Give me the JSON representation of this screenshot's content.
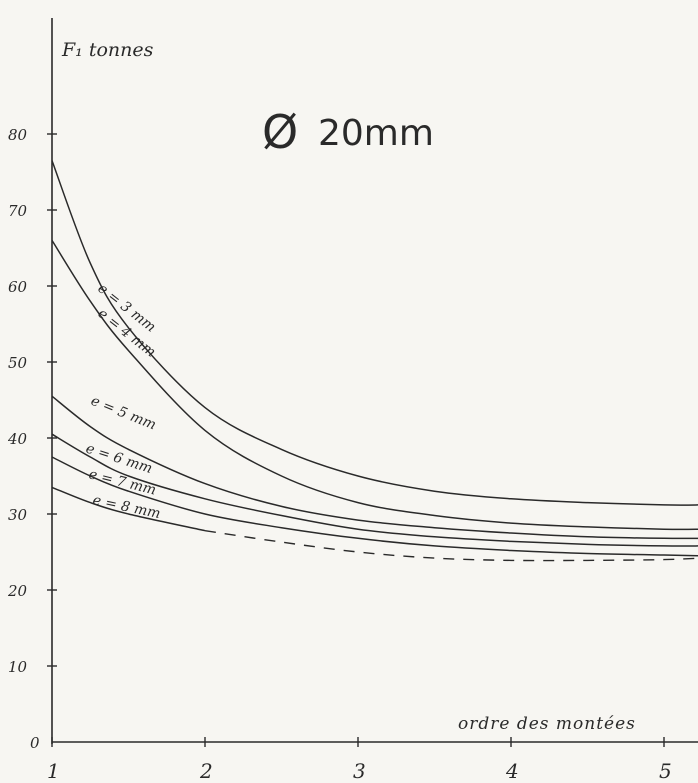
{
  "chart_data": {
    "type": "line",
    "title": "Ø 20mm",
    "title_symbol": "Ø",
    "title_text": "20mm",
    "ylabel": "F₁ tonnes",
    "xlabel": "ordre des montées",
    "x_ticks": [
      "1",
      "2",
      "3",
      "4",
      "5"
    ],
    "y_ticks": [
      "0",
      "10",
      "20",
      "30",
      "40",
      "50",
      "60",
      "70",
      "80"
    ],
    "xlim": [
      1,
      5.25
    ],
    "ylim": [
      0,
      92
    ],
    "grid": false,
    "legend": "inline labels on curves",
    "colors": {
      "ink": "#2a2a2a",
      "paper": "#f7f6f2"
    },
    "series": [
      {
        "name": "e = 3 mm",
        "x": [
          1,
          1.25,
          1.5,
          2,
          2.5,
          3,
          3.5,
          4,
          4.5,
          5,
          5.25
        ],
        "y": [
          76.5,
          63,
          54.5,
          44,
          38.5,
          35,
          33,
          32,
          31.5,
          31.2,
          31.2
        ]
      },
      {
        "name": "e = 4 mm",
        "x": [
          1,
          1.25,
          1.5,
          2,
          2.5,
          3,
          3.5,
          4,
          4.5,
          5,
          5.25
        ],
        "y": [
          66,
          58,
          51.5,
          41,
          35,
          31.5,
          29.8,
          28.8,
          28.3,
          28,
          28
        ]
      },
      {
        "name": "e = 5 mm",
        "x": [
          1,
          1.25,
          1.5,
          2,
          2.5,
          3,
          3.5,
          4,
          4.5,
          5,
          5.25
        ],
        "y": [
          45.5,
          41.5,
          38.5,
          34,
          31,
          29.2,
          28.2,
          27.5,
          27,
          26.8,
          26.8
        ]
      },
      {
        "name": "e = 6 mm",
        "x": [
          1,
          1.25,
          1.5,
          2,
          2.5,
          3,
          3.5,
          4,
          4.5,
          5,
          5.25
        ],
        "y": [
          40.5,
          37.5,
          35,
          32,
          29.8,
          28,
          27,
          26.4,
          26,
          25.8,
          25.8
        ]
      },
      {
        "name": "e = 7 mm",
        "x": [
          1,
          1.25,
          1.5,
          2,
          2.5,
          3,
          3.5,
          4,
          4.5,
          5,
          5.25
        ],
        "y": [
          37.5,
          35,
          33,
          30,
          28.2,
          26.8,
          25.8,
          25.2,
          24.8,
          24.6,
          24.5
        ]
      },
      {
        "name": "e = 8 mm",
        "x": [
          1,
          1.25,
          1.5,
          2,
          2.5,
          3,
          3.5,
          4,
          4.5,
          5,
          5.25
        ],
        "y": [
          33.5,
          31.5,
          30,
          27.8,
          26.3,
          25,
          24.2,
          23.9,
          23.9,
          24,
          24.2
        ],
        "dashed_from_x": 2
      }
    ]
  }
}
